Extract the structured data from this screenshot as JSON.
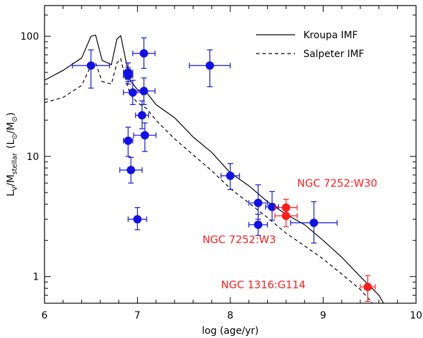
{
  "chart_data": {
    "type": "scatter",
    "xlabel": "log (age/yr)",
    "ylabel_main": "L",
    "ylabel_sub1": "V",
    "ylabel_mid": "/M",
    "ylabel_sub2": "stellar",
    "ylabel_units": "(L",
    "ylabel_units_sub1": "⊙",
    "ylabel_units_mid": "/M",
    "ylabel_units_sub2": "⊙",
    "ylabel_units_end": ")",
    "x_scale": "linear",
    "y_scale": "log",
    "xlim": [
      6,
      10
    ],
    "ylim": [
      0.6,
      180
    ],
    "x_ticks": [
      6,
      7,
      8,
      9,
      10
    ],
    "x_tick_labels": [
      "6",
      "7",
      "8",
      "9",
      "10"
    ],
    "y_ticks": [
      1,
      10,
      100
    ],
    "y_tick_labels": [
      "1",
      "10",
      "100"
    ],
    "grid": false,
    "legend": {
      "placement": "top-right",
      "entries": [
        {
          "label": "Kroupa IMF",
          "style": "solid"
        },
        {
          "label": "Salpeter IMF",
          "style": "dashed"
        }
      ]
    },
    "colors": {
      "blue_points": "#1010e8",
      "red_points": "#ff1c1c",
      "axes": "#000000"
    },
    "lines": [
      {
        "name": "Kroupa IMF",
        "style": "solid",
        "points": [
          [
            6.0,
            43
          ],
          [
            6.2,
            52
          ],
          [
            6.4,
            66
          ],
          [
            6.5,
            100
          ],
          [
            6.55,
            102
          ],
          [
            6.62,
            63
          ],
          [
            6.72,
            58
          ],
          [
            6.78,
            95
          ],
          [
            6.82,
            101
          ],
          [
            6.86,
            72
          ],
          [
            6.92,
            43
          ],
          [
            7.0,
            36
          ],
          [
            7.1,
            34
          ],
          [
            7.2,
            27
          ],
          [
            7.4,
            21
          ],
          [
            7.6,
            14.5
          ],
          [
            7.8,
            10.8
          ],
          [
            8.0,
            7.3
          ],
          [
            8.2,
            5.7
          ],
          [
            8.4,
            4.2
          ],
          [
            8.6,
            3.3
          ],
          [
            8.8,
            2.7
          ],
          [
            9.0,
            2.0
          ],
          [
            9.2,
            1.45
          ],
          [
            9.4,
            1.0
          ],
          [
            9.6,
            0.7
          ],
          [
            9.65,
            0.6
          ]
        ]
      },
      {
        "name": "Salpeter IMF",
        "style": "dashed",
        "points": [
          [
            6.0,
            28
          ],
          [
            6.2,
            31
          ],
          [
            6.4,
            39
          ],
          [
            6.5,
            57
          ],
          [
            6.55,
            60
          ],
          [
            6.62,
            42
          ],
          [
            6.72,
            40
          ],
          [
            6.78,
            60
          ],
          [
            6.82,
            65
          ],
          [
            6.86,
            48
          ],
          [
            6.92,
            33
          ],
          [
            7.0,
            28
          ],
          [
            7.1,
            25
          ],
          [
            7.2,
            20
          ],
          [
            7.4,
            14
          ],
          [
            7.6,
            10.3
          ],
          [
            7.8,
            7.6
          ],
          [
            8.0,
            5.4
          ],
          [
            8.2,
            4.1
          ],
          [
            8.4,
            3.1
          ],
          [
            8.6,
            2.3
          ],
          [
            8.8,
            1.8
          ],
          [
            9.0,
            1.4
          ],
          [
            9.2,
            1.05
          ],
          [
            9.4,
            0.78
          ],
          [
            9.5,
            0.64
          ],
          [
            9.53,
            0.6
          ]
        ]
      }
    ],
    "points_blue": [
      {
        "x": 6.5,
        "y": 57,
        "xerr": 0.2,
        "ylo": 37,
        "yhi": 77
      },
      {
        "x": 6.9,
        "y": 50,
        "xerr": 0.05,
        "ylo": 42,
        "yhi": 60
      },
      {
        "x": 6.9,
        "y": 47,
        "xerr": 0.05,
        "ylo": 40,
        "yhi": 55
      },
      {
        "x": 7.07,
        "y": 72,
        "xerr": 0.12,
        "ylo": 54,
        "yhi": 97
      },
      {
        "x": 7.78,
        "y": 57,
        "xerr": 0.22,
        "ylo": 38,
        "yhi": 77
      },
      {
        "x": 6.95,
        "y": 34,
        "xerr": 0.1,
        "ylo": 27,
        "yhi": 43
      },
      {
        "x": 7.07,
        "y": 35,
        "xerr": 0.12,
        "ylo": 27,
        "yhi": 45
      },
      {
        "x": 7.05,
        "y": 22,
        "xerr": 0.07,
        "ylo": 17,
        "yhi": 29
      },
      {
        "x": 7.08,
        "y": 15,
        "xerr": 0.12,
        "ylo": 11,
        "yhi": 19
      },
      {
        "x": 6.9,
        "y": 13.5,
        "xerr": 0.05,
        "ylo": 10,
        "yhi": 17.5
      },
      {
        "x": 6.93,
        "y": 7.7,
        "xerr": 0.12,
        "ylo": 6,
        "yhi": 9.8
      },
      {
        "x": 7.0,
        "y": 3.0,
        "xerr": 0.1,
        "ylo": 2.45,
        "yhi": 3.75
      },
      {
        "x": 8.0,
        "y": 6.9,
        "xerr": 0.1,
        "ylo": 5.3,
        "yhi": 8.7
      },
      {
        "x": 8.3,
        "y": 4.1,
        "xerr": 0.1,
        "ylo": 3.0,
        "yhi": 5.8
      },
      {
        "x": 8.3,
        "y": 2.7,
        "xerr": 0.1,
        "ylo": 2.2,
        "yhi": 3.3
      },
      {
        "x": 8.45,
        "y": 3.8,
        "xerr": 0.07,
        "ylo": 2.95,
        "yhi": 5.1
      },
      {
        "x": 8.9,
        "y": 2.8,
        "xerr": 0.25,
        "ylo": 1.9,
        "yhi": 4.2
      }
    ],
    "points_red": [
      {
        "x": 8.6,
        "y": 3.75,
        "xerr": 0.12,
        "ylo": 3.15,
        "yhi": 4.4
      },
      {
        "x": 8.6,
        "y": 3.2,
        "xerr": 0.12,
        "ylo": 2.6,
        "yhi": 3.85
      },
      {
        "x": 9.48,
        "y": 0.82,
        "xerr": 0.08,
        "ylo": 0.62,
        "yhi": 1.02
      }
    ],
    "annotations": [
      {
        "text": "NGC 7252:W30",
        "x": 8.72,
        "y": 5.6
      },
      {
        "text": "NGC 7252:W3",
        "x": 7.7,
        "y": 1.9
      },
      {
        "text": "NGC 1316:G114",
        "x": 7.9,
        "y": 0.8
      }
    ]
  }
}
